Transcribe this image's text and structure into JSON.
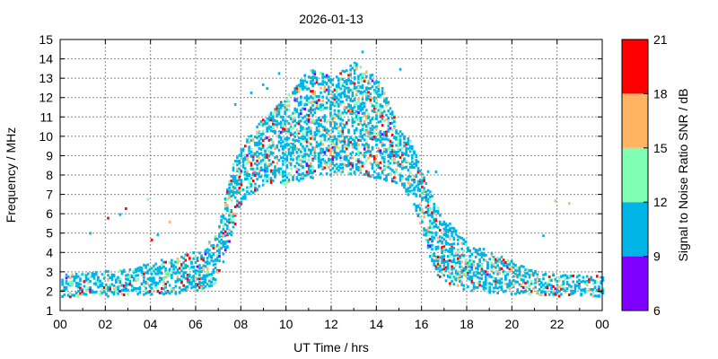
{
  "chart_data": {
    "type": "heatmap",
    "title": "2026-01-13",
    "xlabel": "UT Time / hrs",
    "ylabel": "Frequency / MHz",
    "colorbar_label": "Signal to Noise Ratio SNR / dB",
    "xlim": [
      0,
      24
    ],
    "ylim": [
      1,
      15
    ],
    "x_ticks": [
      "00",
      "02",
      "04",
      "06",
      "08",
      "10",
      "12",
      "14",
      "16",
      "18",
      "20",
      "22",
      "00"
    ],
    "y_ticks": [
      "1",
      "2",
      "3",
      "4",
      "5",
      "6",
      "7",
      "8",
      "9",
      "10",
      "11",
      "12",
      "13",
      "14",
      "15"
    ],
    "colorbar": {
      "ticks": [
        "6",
        "9",
        "12",
        "15",
        "18",
        "21"
      ],
      "bins": [
        {
          "from": 6,
          "to": 9,
          "color": "#7f00ff"
        },
        {
          "from": 9,
          "to": 12,
          "color": "#00b4e6"
        },
        {
          "from": 12,
          "to": 15,
          "color": "#80ffb4"
        },
        {
          "from": 15,
          "to": 18,
          "color": "#ffb464"
        },
        {
          "from": 18,
          "to": 21,
          "color": "#ff0000"
        }
      ]
    },
    "grid": true,
    "band_profile": {
      "description": "approximate frequency band of detections vs time",
      "hours": [
        0,
        1,
        2,
        3,
        4,
        5,
        5.8,
        6.3,
        6.8,
        7.2,
        7.6,
        8,
        9,
        10,
        11,
        12,
        13,
        14,
        15,
        15.6,
        16,
        16.4,
        16.8,
        17.2,
        18,
        19,
        20,
        21,
        22,
        23,
        24
      ],
      "low_mhz": [
        1.6,
        1.7,
        1.7,
        1.8,
        1.8,
        1.8,
        1.9,
        2.0,
        2.3,
        3.5,
        5.0,
        6.5,
        7.5,
        7.5,
        7.8,
        8.0,
        8.0,
        7.8,
        7.5,
        6.5,
        5.0,
        3.5,
        2.5,
        2.2,
        2.0,
        1.9,
        1.8,
        1.8,
        1.7,
        1.7,
        1.7
      ],
      "high_mhz": [
        2.8,
        2.9,
        3.0,
        3.1,
        3.4,
        3.6,
        4.0,
        4.2,
        4.8,
        6.5,
        8.5,
        9.5,
        11.0,
        12.0,
        13.5,
        13.0,
        13.8,
        13.0,
        10.5,
        9.5,
        8.0,
        7.0,
        6.0,
        5.5,
        4.5,
        4.0,
        3.5,
        3.0,
        2.8,
        2.8,
        2.8
      ]
    }
  }
}
